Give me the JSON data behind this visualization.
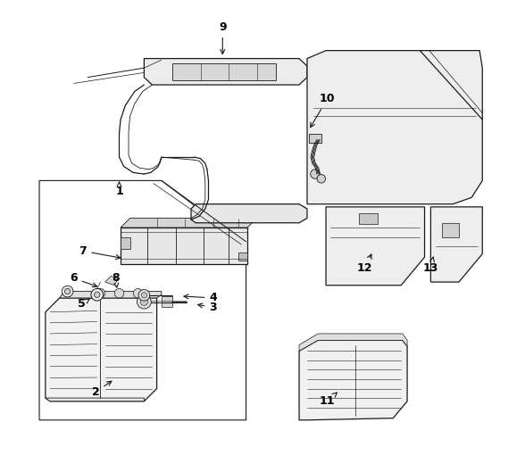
{
  "bg_color": "#ffffff",
  "line_color": "#1a1a1a",
  "label_color": "#000000",
  "arrow_targets": {
    "1": [
      0.195,
      0.595,
      0.195,
      0.617
    ],
    "2": [
      0.145,
      0.168,
      0.185,
      0.195
    ],
    "3": [
      0.395,
      0.348,
      0.355,
      0.355
    ],
    "4": [
      0.395,
      0.368,
      0.325,
      0.372
    ],
    "5": [
      0.115,
      0.355,
      0.138,
      0.37
    ],
    "6": [
      0.098,
      0.41,
      0.155,
      0.39
    ],
    "7": [
      0.118,
      0.468,
      0.205,
      0.452
    ],
    "8": [
      0.188,
      0.41,
      0.19,
      0.388
    ],
    "9": [
      0.415,
      0.945,
      0.415,
      0.88
    ],
    "10": [
      0.638,
      0.792,
      0.598,
      0.725
    ],
    "11": [
      0.638,
      0.148,
      0.66,
      0.168
    ],
    "12": [
      0.718,
      0.432,
      0.735,
      0.468
    ],
    "13": [
      0.858,
      0.432,
      0.865,
      0.462
    ]
  }
}
